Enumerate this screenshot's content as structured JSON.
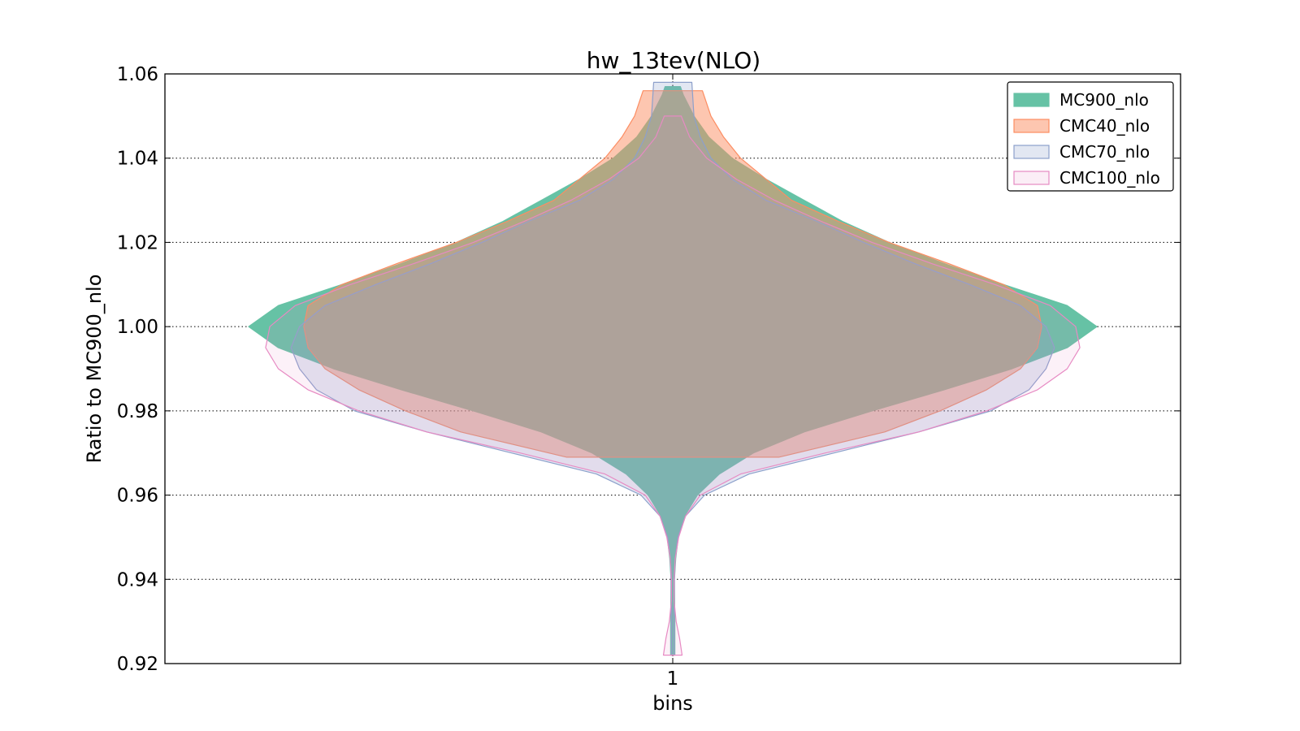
{
  "chart_data": {
    "type": "violin",
    "title": "hw_13tev(NLO)",
    "xlabel": "bins",
    "ylabel": "Ratio to MC900_nlo",
    "categories": [
      "1"
    ],
    "ylim": [
      0.92,
      1.06
    ],
    "yticks": [
      "0.92",
      "0.94",
      "0.96",
      "0.98",
      "1.00",
      "1.02",
      "1.04",
      "1.06"
    ],
    "grid": true,
    "legend_position": "top-right",
    "series": [
      {
        "name": "MC900_nlo",
        "fill": "#66c2a5",
        "stroke": "#66c2a5",
        "fill_opacity": 1.0,
        "y_range": [
          0.922,
          1.057
        ],
        "half_width": [
          [
            0.922,
            0.005
          ],
          [
            0.93,
            0.005
          ],
          [
            0.94,
            0.004
          ],
          [
            0.945,
            0.007
          ],
          [
            0.95,
            0.013
          ],
          [
            0.955,
            0.028
          ],
          [
            0.96,
            0.058
          ],
          [
            0.965,
            0.11
          ],
          [
            0.97,
            0.19
          ],
          [
            0.975,
            0.31
          ],
          [
            0.98,
            0.47
          ],
          [
            0.985,
            0.64
          ],
          [
            0.99,
            0.8
          ],
          [
            0.995,
            0.93
          ],
          [
            1.0,
            1.0
          ],
          [
            1.005,
            0.93
          ],
          [
            1.01,
            0.78
          ],
          [
            1.015,
            0.64
          ],
          [
            1.02,
            0.51
          ],
          [
            1.025,
            0.4
          ],
          [
            1.03,
            0.31
          ],
          [
            1.035,
            0.22
          ],
          [
            1.04,
            0.14
          ],
          [
            1.045,
            0.085
          ],
          [
            1.05,
            0.05
          ],
          [
            1.055,
            0.025
          ],
          [
            1.057,
            0.018
          ]
        ]
      },
      {
        "name": "CMC40_nlo",
        "fill": "#fc8d62",
        "stroke": "#fc8d62",
        "fill_opacity": 0.5,
        "y_range": [
          0.969,
          1.056
        ],
        "half_width": [
          [
            0.969,
            0.25
          ],
          [
            0.975,
            0.5
          ],
          [
            0.98,
            0.63
          ],
          [
            0.985,
            0.74
          ],
          [
            0.99,
            0.82
          ],
          [
            0.995,
            0.86
          ],
          [
            1.0,
            0.87
          ],
          [
            1.005,
            0.86
          ],
          [
            1.01,
            0.78
          ],
          [
            1.015,
            0.65
          ],
          [
            1.02,
            0.51
          ],
          [
            1.025,
            0.39
          ],
          [
            1.03,
            0.28
          ],
          [
            1.035,
            0.22
          ],
          [
            1.04,
            0.16
          ],
          [
            1.045,
            0.12
          ],
          [
            1.05,
            0.09
          ],
          [
            1.056,
            0.07
          ]
        ]
      },
      {
        "name": "CMC70_nlo",
        "fill": "#8da0cb",
        "stroke": "#8da0cb",
        "fill_opacity": 0.25,
        "y_range": [
          0.922,
          1.058
        ],
        "half_width": [
          [
            0.922,
            0.003
          ],
          [
            0.93,
            0.003
          ],
          [
            0.94,
            0.004
          ],
          [
            0.945,
            0.006
          ],
          [
            0.95,
            0.012
          ],
          [
            0.955,
            0.03
          ],
          [
            0.96,
            0.075
          ],
          [
            0.965,
            0.18
          ],
          [
            0.97,
            0.38
          ],
          [
            0.975,
            0.58
          ],
          [
            0.98,
            0.75
          ],
          [
            0.985,
            0.84
          ],
          [
            0.99,
            0.88
          ],
          [
            0.995,
            0.9
          ],
          [
            1.0,
            0.88
          ],
          [
            1.005,
            0.82
          ],
          [
            1.01,
            0.7
          ],
          [
            1.015,
            0.57
          ],
          [
            1.02,
            0.45
          ],
          [
            1.025,
            0.34
          ],
          [
            1.03,
            0.22
          ],
          [
            1.035,
            0.14
          ],
          [
            1.04,
            0.09
          ],
          [
            1.045,
            0.065
          ],
          [
            1.05,
            0.05
          ],
          [
            1.058,
            0.045
          ]
        ]
      },
      {
        "name": "CMC100_nlo",
        "fill": "#e78ac3",
        "stroke": "#e78ac3",
        "fill_opacity": 0.12,
        "y_range": [
          0.922,
          1.05
        ],
        "half_width": [
          [
            0.922,
            0.022
          ],
          [
            0.926,
            0.016
          ],
          [
            0.93,
            0.008
          ],
          [
            0.935,
            0.003
          ],
          [
            0.94,
            0.003
          ],
          [
            0.945,
            0.006
          ],
          [
            0.95,
            0.014
          ],
          [
            0.955,
            0.03
          ],
          [
            0.96,
            0.065
          ],
          [
            0.965,
            0.16
          ],
          [
            0.97,
            0.36
          ],
          [
            0.975,
            0.58
          ],
          [
            0.98,
            0.74
          ],
          [
            0.985,
            0.86
          ],
          [
            0.99,
            0.93
          ],
          [
            0.995,
            0.96
          ],
          [
            1.0,
            0.95
          ],
          [
            1.005,
            0.89
          ],
          [
            1.01,
            0.76
          ],
          [
            1.015,
            0.61
          ],
          [
            1.02,
            0.47
          ],
          [
            1.025,
            0.35
          ],
          [
            1.03,
            0.24
          ],
          [
            1.035,
            0.15
          ],
          [
            1.04,
            0.08
          ],
          [
            1.045,
            0.04
          ],
          [
            1.05,
            0.02
          ]
        ]
      }
    ]
  }
}
